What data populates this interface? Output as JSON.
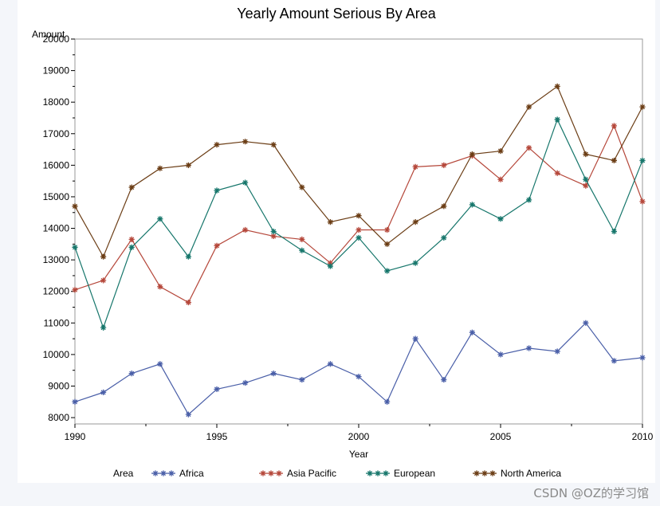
{
  "chart_data": {
    "type": "line",
    "title": "Yearly Amount Serious By Area",
    "xlabel": "Year",
    "ylabel": "Amount",
    "xlim": [
      1990,
      2010
    ],
    "ylim": [
      7800,
      20000
    ],
    "x_ticks": [
      "1990",
      "1995",
      "2000",
      "2005",
      "2010"
    ],
    "y_ticks": [
      "8000",
      "9000",
      "10000",
      "11000",
      "12000",
      "13000",
      "14000",
      "15000",
      "16000",
      "17000",
      "18000",
      "19000",
      "20000"
    ],
    "x": [
      1990,
      1991,
      1992,
      1993,
      1994,
      1995,
      1996,
      1997,
      1998,
      1999,
      2000,
      2001,
      2002,
      2003,
      2004,
      2005,
      2006,
      2007,
      2008,
      2009,
      2010
    ],
    "legend_title": "Area",
    "legend_position": "bottom",
    "marker": "asterisk",
    "series": [
      {
        "name": "Africa",
        "color": "#4a5fa8",
        "values": [
          8500,
          8800,
          9400,
          9700,
          8100,
          8900,
          9100,
          9400,
          9200,
          9700,
          9300,
          8500,
          10500,
          9200,
          10700,
          10000,
          10200,
          10100,
          11000,
          9800,
          9900
        ]
      },
      {
        "name": "Asia Pacific",
        "color": "#b5473a",
        "values": [
          12050,
          12350,
          13650,
          12150,
          11650,
          13450,
          13950,
          13750,
          13650,
          12900,
          13950,
          13950,
          15950,
          16000,
          16300,
          15550,
          16550,
          15750,
          15350,
          17250,
          14850
        ]
      },
      {
        "name": "European",
        "color": "#16766b",
        "values": [
          13400,
          10850,
          13400,
          14300,
          13100,
          15200,
          15450,
          13900,
          13300,
          12800,
          13700,
          12650,
          12900,
          13700,
          14750,
          14300,
          14900,
          17450,
          15550,
          13900,
          16150
        ]
      },
      {
        "name": "North America",
        "color": "#6b3d15",
        "values": [
          14700,
          13100,
          15300,
          15900,
          16000,
          16650,
          16750,
          16650,
          15300,
          14200,
          14400,
          13500,
          14200,
          14700,
          16350,
          16450,
          17850,
          18500,
          16350,
          16150,
          17850
        ]
      }
    ]
  },
  "watermark": "CSDN @OZ的学习馆"
}
